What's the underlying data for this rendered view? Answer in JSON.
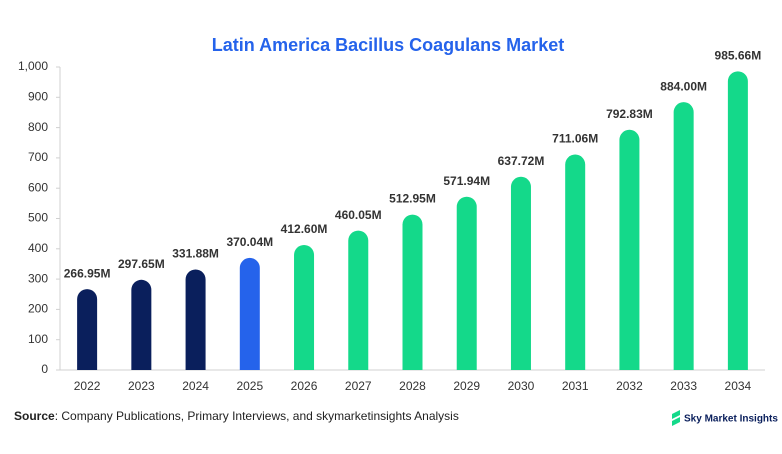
{
  "chart_data": {
    "type": "bar",
    "title": "Latin America Bacillus Coagulans Market",
    "categories": [
      "2022",
      "2023",
      "2024",
      "2025",
      "2026",
      "2027",
      "2028",
      "2029",
      "2030",
      "2031",
      "2032",
      "2033",
      "2034"
    ],
    "values": [
      266.95,
      297.65,
      331.88,
      370.04,
      412.6,
      460.05,
      512.95,
      571.94,
      637.72,
      711.06,
      792.83,
      884.0,
      985.66
    ],
    "value_labels": [
      "266.95M",
      "297.65M",
      "331.88M",
      "370.04M",
      "412.60M",
      "460.05M",
      "512.95M",
      "571.94M",
      "637.72M",
      "711.06M",
      "792.83M",
      "884.00M",
      "985.66M"
    ],
    "colors": [
      "#0a1f5c",
      "#0a1f5c",
      "#0a1f5c",
      "#2563eb",
      "#14d98a",
      "#14d98a",
      "#14d98a",
      "#14d98a",
      "#14d98a",
      "#14d98a",
      "#14d98a",
      "#14d98a",
      "#14d98a"
    ],
    "ylim": [
      0,
      1000
    ],
    "yticks": [
      0,
      100,
      200,
      300,
      400,
      500,
      600,
      700,
      800,
      900,
      {
        "value": 1000,
        "label": "1,000"
      }
    ],
    "source_label": "Source",
    "source_text": ": Company Publications, Primary Interviews, and skymarketinsights Analysis",
    "logo_text": "Sky Market Insights"
  }
}
